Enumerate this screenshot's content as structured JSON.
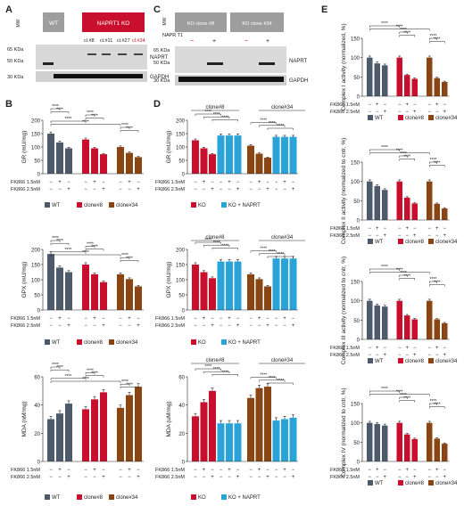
{
  "panel_letters": [
    "A",
    "B",
    "C",
    "D",
    "E"
  ],
  "colors": {
    "wt": "#4d5a6c",
    "clone8": "#c8102e",
    "clone34": "#8b4513",
    "ko": "#c8102e",
    "ko_naprt": "#29a3d8",
    "lane_grey": "#9e9e9e",
    "ko_red": "#c8102e"
  },
  "panelA": {
    "lanes": [
      "WT",
      "NAPRT1 KO"
    ],
    "mw_label": "MW",
    "clones": [
      "cl.#8",
      "cl.#11",
      "cl.#27",
      "cl.#34"
    ],
    "kda": [
      "65 KDa",
      "50 KDa",
      "30 KDa"
    ],
    "bands": [
      "NAPRT",
      "GAPDH"
    ]
  },
  "panelC": {
    "mw_label": "MW",
    "header": [
      "KO clone #8",
      "KO clone #34"
    ],
    "row_label": "NAPR T1",
    "signs": [
      "−",
      "+",
      "−",
      "+"
    ],
    "kda": [
      "65 KDa",
      "50 KDa",
      "30 KDa"
    ],
    "bands": [
      "NAPRT",
      "GAPDH"
    ]
  },
  "treatment_labels": [
    "FK866 1.5nM",
    "FK866 2.5nM"
  ],
  "signs_groupB": {
    "row1": [
      "−",
      "+",
      "−"
    ],
    "row2": [
      "−",
      "−",
      "+"
    ]
  },
  "signs_groupD": {
    "row1": [
      "−",
      "+",
      "−",
      "−",
      "+",
      "−"
    ],
    "row2": [
      "−",
      "−",
      "+",
      "−",
      "−",
      "+"
    ]
  },
  "signs_groupE": {
    "row1": [
      "−",
      "+",
      "−"
    ],
    "row2": [
      "−",
      "−",
      "+"
    ]
  },
  "stars": [
    "****",
    "***",
    "**",
    "*"
  ],
  "legendB": [
    "WT",
    "clone#8",
    "clone#34"
  ],
  "legendD": [
    "KO",
    "KO + NAPRT"
  ],
  "legendE": [
    "WT",
    "clone#8",
    "clone#34"
  ],
  "clone_headers": [
    "clone#8",
    "clone#34"
  ],
  "chart_data": [
    {
      "id": "B1",
      "type": "bar",
      "ylabel": "GR (mU/mg)",
      "ylim": [
        0,
        200
      ],
      "ticks": [
        0,
        50,
        100,
        150,
        200
      ],
      "groups": [
        {
          "name": "WT",
          "values": [
            150,
            117,
            95
          ]
        },
        {
          "name": "clone#8",
          "values": [
            128,
            95,
            73
          ]
        },
        {
          "name": "clone#34",
          "values": [
            100,
            78,
            62
          ]
        }
      ]
    },
    {
      "id": "B2",
      "type": "bar",
      "ylabel": "GPX (mU/mg)",
      "ylim": [
        0,
        200
      ],
      "ticks": [
        0,
        50,
        100,
        150,
        200
      ],
      "groups": [
        {
          "name": "WT",
          "values": [
            185,
            140,
            125
          ]
        },
        {
          "name": "clone#8",
          "values": [
            150,
            118,
            92
          ]
        },
        {
          "name": "clone#34",
          "values": [
            118,
            102,
            78
          ]
        }
      ]
    },
    {
      "id": "B3",
      "type": "bar",
      "ylabel": "MDA (nM/mg)",
      "ylim": [
        0,
        60
      ],
      "ticks": [
        0,
        20,
        40,
        60
      ],
      "groups": [
        {
          "name": "WT",
          "values": [
            30,
            34,
            41
          ]
        },
        {
          "name": "clone#8",
          "values": [
            37,
            44,
            49
          ]
        },
        {
          "name": "clone#34",
          "values": [
            38,
            47,
            53
          ]
        }
      ]
    },
    {
      "id": "D1",
      "type": "bar",
      "ylabel": "GR (mU/mg)",
      "ylim": [
        0,
        200
      ],
      "ticks": [
        0,
        50,
        100,
        150,
        200
      ],
      "groups": [
        {
          "name": "clone#8",
          "values": [
            125,
            95,
            73,
            143,
            143,
            143
          ]
        },
        {
          "name": "clone#34",
          "values": [
            105,
            75,
            60,
            138,
            138,
            138
          ]
        }
      ]
    },
    {
      "id": "D2",
      "type": "bar",
      "ylabel": "GPX (mU/mg)",
      "ylim": [
        0,
        200
      ],
      "ticks": [
        0,
        50,
        100,
        150,
        200
      ],
      "groups": [
        {
          "name": "clone#8",
          "values": [
            150,
            125,
            105,
            160,
            160,
            160
          ]
        },
        {
          "name": "clone#34",
          "values": [
            118,
            102,
            78,
            170,
            170,
            170
          ]
        }
      ]
    },
    {
      "id": "D3",
      "type": "bar",
      "ylabel": "MDA (uM/mg)",
      "ylim": [
        0,
        60
      ],
      "ticks": [
        0,
        20,
        40,
        60
      ],
      "groups": [
        {
          "name": "clone#8",
          "values": [
            32,
            42,
            50,
            27,
            27,
            27
          ]
        },
        {
          "name": "clone#34",
          "values": [
            45,
            52,
            53,
            29,
            30,
            31
          ]
        }
      ]
    },
    {
      "id": "E1",
      "type": "bar",
      "ylabel": "Complex I activity (normalized, %)",
      "ylim": [
        0,
        150
      ],
      "ticks": [
        0,
        50,
        100,
        150
      ],
      "groups": [
        {
          "name": "WT",
          "values": [
            100,
            85,
            80
          ]
        },
        {
          "name": "clone#8",
          "values": [
            100,
            55,
            45
          ]
        },
        {
          "name": "clone#34",
          "values": [
            100,
            47,
            37
          ]
        }
      ]
    },
    {
      "id": "E2",
      "type": "bar",
      "ylabel": "Complex II activity (normalized to cntr, %)",
      "ylim": [
        0,
        150
      ],
      "ticks": [
        0,
        50,
        100,
        150
      ],
      "groups": [
        {
          "name": "WT",
          "values": [
            100,
            88,
            78
          ]
        },
        {
          "name": "clone#8",
          "values": [
            100,
            58,
            43
          ]
        },
        {
          "name": "clone#34",
          "values": [
            100,
            42,
            30
          ]
        }
      ]
    },
    {
      "id": "E3",
      "type": "bar",
      "ylabel": "Complex III activity (normalized to cntr, %)",
      "ylim": [
        0,
        150
      ],
      "ticks": [
        0,
        50,
        100,
        150
      ],
      "groups": [
        {
          "name": "WT",
          "values": [
            100,
            88,
            85
          ]
        },
        {
          "name": "clone#8",
          "values": [
            100,
            62,
            52
          ]
        },
        {
          "name": "clone#34",
          "values": [
            100,
            52,
            42
          ]
        }
      ]
    },
    {
      "id": "E4",
      "type": "bar",
      "ylabel": "Complex IV (normalized to cntr, %)",
      "ylim": [
        0,
        150
      ],
      "ticks": [
        0,
        50,
        100,
        150
      ],
      "groups": [
        {
          "name": "WT",
          "values": [
            100,
            97,
            93
          ]
        },
        {
          "name": "clone#8",
          "values": [
            100,
            70,
            58
          ]
        },
        {
          "name": "clone#34",
          "values": [
            100,
            59,
            46
          ]
        }
      ]
    }
  ]
}
